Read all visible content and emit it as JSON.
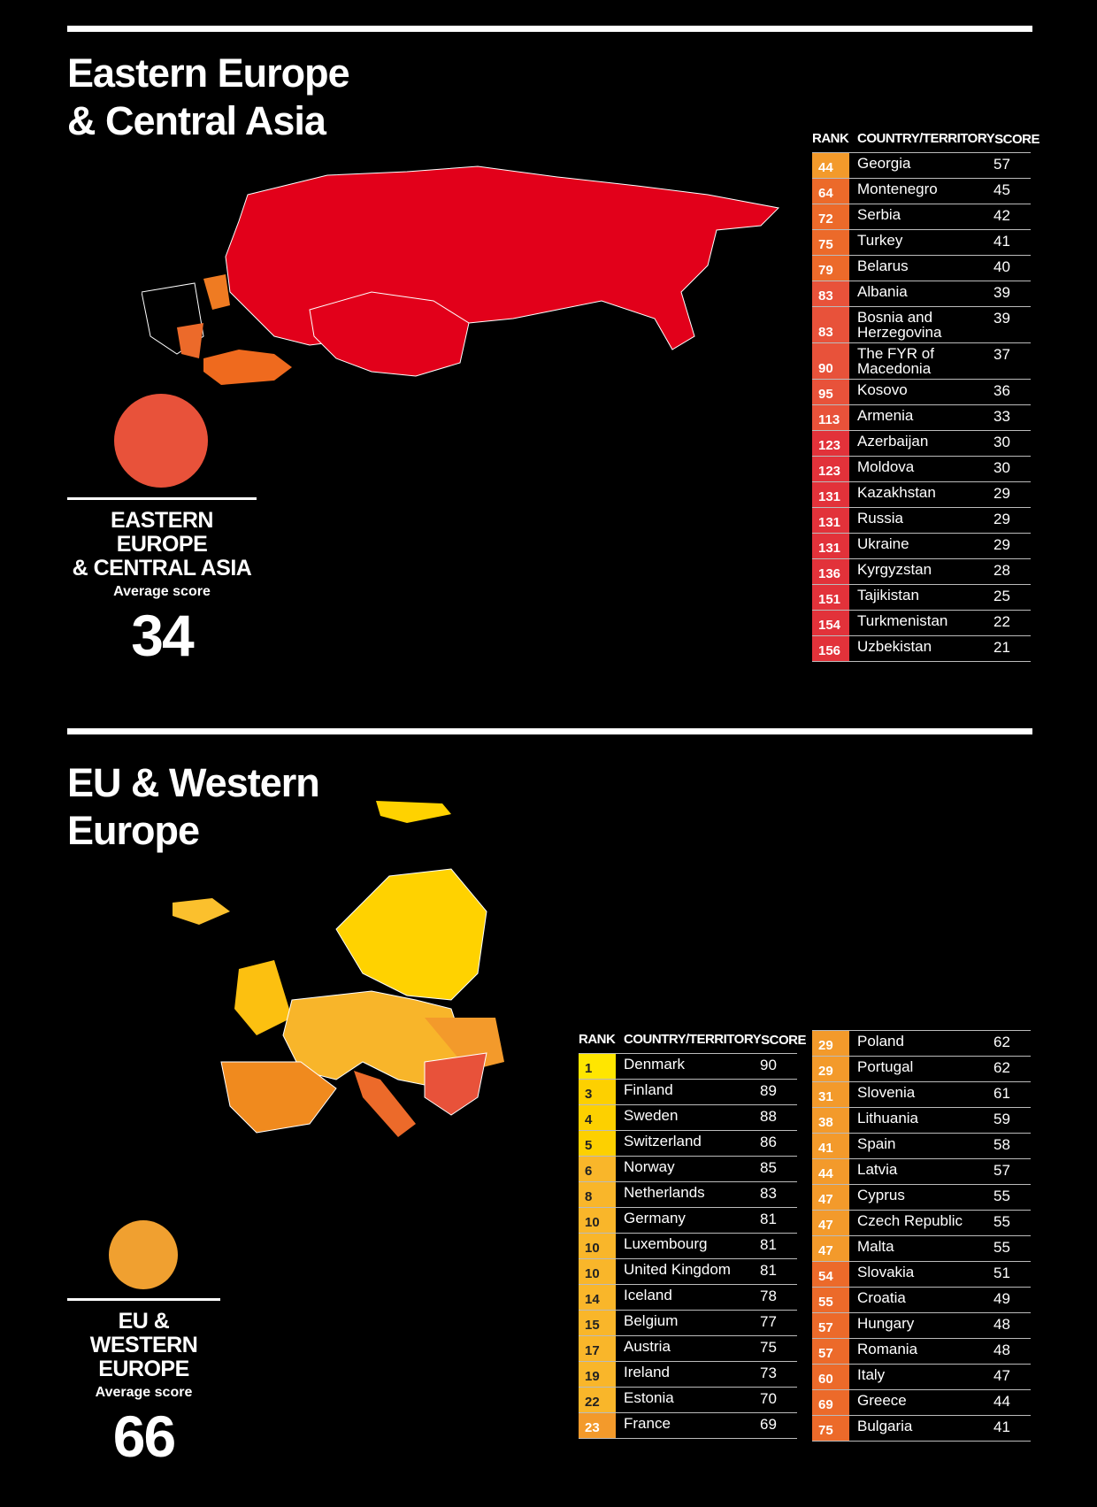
{
  "sections": [
    {
      "title_lines": [
        "Eastern Europe",
        "& Central Asia"
      ],
      "average": {
        "label_lines": [
          "EASTERN EUROPE",
          "& CENTRAL ASIA"
        ],
        "caption": "Average score",
        "value": 34
      },
      "tables": [
        {
          "header": [
            "RANK",
            "COUNTRY/TERRITORY",
            "SCORE"
          ],
          "rows": [
            [
              44,
              "Georgia",
              57
            ],
            [
              64,
              "Montenegro",
              45
            ],
            [
              72,
              "Serbia",
              42
            ],
            [
              75,
              "Turkey",
              41
            ],
            [
              79,
              "Belarus",
              40
            ],
            [
              83,
              "Albania",
              39
            ],
            [
              83,
              "Bosnia and Herzegovina",
              39
            ],
            [
              90,
              "The FYR of Macedonia",
              37
            ],
            [
              95,
              "Kosovo",
              36
            ],
            [
              113,
              "Armenia",
              33
            ],
            [
              123,
              "Azerbaijan",
              30
            ],
            [
              123,
              "Moldova",
              30
            ],
            [
              131,
              "Kazakhstan",
              29
            ],
            [
              131,
              "Russia",
              29
            ],
            [
              131,
              "Ukraine",
              29
            ],
            [
              136,
              "Kyrgyzstan",
              28
            ],
            [
              151,
              "Tajikistan",
              25
            ],
            [
              154,
              "Turkmenistan",
              22
            ],
            [
              156,
              "Uzbekistan",
              21
            ]
          ]
        }
      ]
    },
    {
      "title_lines": [
        "EU & Western",
        "Europe"
      ],
      "average": {
        "label_lines": [
          "EU & WESTERN",
          "EUROPE"
        ],
        "caption": "Average score",
        "value": 66
      },
      "tables": [
        {
          "header": [
            "RANK",
            "COUNTRY/TERRITORY",
            "SCORE"
          ],
          "rows": [
            [
              1,
              "Denmark",
              90
            ],
            [
              3,
              "Finland",
              89
            ],
            [
              4,
              "Sweden",
              88
            ],
            [
              5,
              "Switzerland",
              86
            ],
            [
              6,
              "Norway",
              85
            ],
            [
              8,
              "Netherlands",
              83
            ],
            [
              10,
              "Germany",
              81
            ],
            [
              10,
              "Luxembourg",
              81
            ],
            [
              10,
              "United Kingdom",
              81
            ],
            [
              14,
              "Iceland",
              78
            ],
            [
              15,
              "Belgium",
              77
            ],
            [
              17,
              "Austria",
              75
            ],
            [
              19,
              "Ireland",
              73
            ],
            [
              22,
              "Estonia",
              70
            ],
            [
              23,
              "France",
              69
            ]
          ]
        },
        {
          "rows": [
            [
              29,
              "Poland",
              62
            ],
            [
              29,
              "Portugal",
              62
            ],
            [
              31,
              "Slovenia",
              61
            ],
            [
              38,
              "Lithuania",
              59
            ],
            [
              41,
              "Spain",
              58
            ],
            [
              44,
              "Latvia",
              57
            ],
            [
              47,
              "Cyprus",
              55
            ],
            [
              47,
              "Czech Republic",
              55
            ],
            [
              47,
              "Malta",
              55
            ],
            [
              54,
              "Slovakia",
              51
            ],
            [
              55,
              "Croatia",
              49
            ],
            [
              57,
              "Hungary",
              48
            ],
            [
              57,
              "Romania",
              48
            ],
            [
              60,
              "Italy",
              47
            ],
            [
              69,
              "Greece",
              44
            ],
            [
              75,
              "Bulgaria",
              41
            ]
          ]
        }
      ]
    }
  ]
}
